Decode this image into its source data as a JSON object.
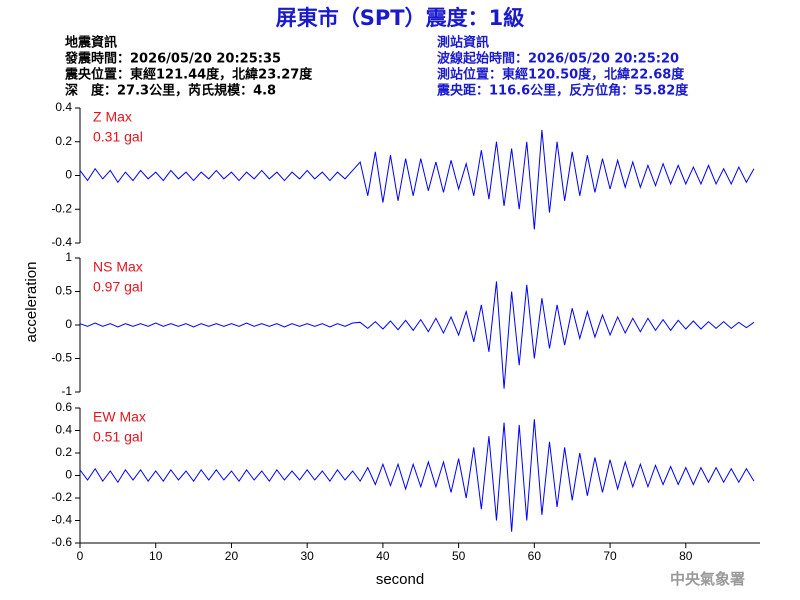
{
  "header": {
    "title": "屏東市（SPT）震度：1級",
    "left": [
      "地震資訊",
      "發震時間：2026/05/20 20:25:35",
      "震央位置：東經121.44度，北緯23.27度",
      "深　度：27.3公里，芮氏規模：4.8"
    ],
    "right": [
      "測站資訊",
      "波線起始時間：2026/05/20 20:25:20",
      "測站位置：東經120.50度，北緯22.68度",
      "震央距：116.6公里，反方位角：55.82度"
    ],
    "footer": "中央氣象署"
  },
  "chart_data": {
    "type": "line",
    "xlabel": "second",
    "ylabel": "acceleration",
    "xlim": [
      0,
      89.8
    ],
    "xticks": [
      0,
      10,
      20,
      30,
      40,
      50,
      60,
      70,
      80
    ],
    "x": [
      0,
      1,
      2,
      3,
      4,
      5,
      6,
      7,
      8,
      9,
      10,
      11,
      12,
      13,
      14,
      15,
      16,
      17,
      18,
      19,
      20,
      21,
      22,
      23,
      24,
      25,
      26,
      27,
      28,
      29,
      30,
      31,
      32,
      33,
      34,
      35,
      36,
      37,
      38,
      39,
      40,
      41,
      42,
      43,
      44,
      45,
      46,
      47,
      48,
      49,
      50,
      51,
      52,
      53,
      54,
      55,
      56,
      57,
      58,
      59,
      60,
      61,
      62,
      63,
      64,
      65,
      66,
      67,
      68,
      69,
      70,
      71,
      72,
      73,
      74,
      75,
      76,
      77,
      78,
      79,
      80,
      81,
      82,
      83,
      84,
      85,
      86,
      87,
      88,
      89
    ],
    "series": [
      {
        "name": "Z Max",
        "max_label": "0.31 gal",
        "color": "#0000ff",
        "ylim": [
          -0.4,
          0.4
        ],
        "yticks": [
          0.4,
          0.2,
          0,
          -0.2,
          -0.4
        ],
        "values": [
          0.03,
          -0.03,
          0.04,
          -0.02,
          0.03,
          -0.04,
          0.02,
          -0.03,
          0.03,
          -0.02,
          0.02,
          -0.03,
          0.03,
          -0.02,
          0.02,
          -0.03,
          0.02,
          -0.02,
          0.03,
          -0.02,
          0.02,
          -0.03,
          0.02,
          -0.02,
          0.03,
          -0.02,
          0.02,
          -0.03,
          0.02,
          -0.02,
          0.03,
          -0.02,
          0.02,
          -0.03,
          0.02,
          -0.02,
          0.03,
          0.08,
          -0.12,
          0.14,
          -0.16,
          0.12,
          -0.15,
          0.1,
          -0.12,
          0.1,
          -0.09,
          0.08,
          -0.1,
          0.09,
          -0.08,
          0.07,
          -0.12,
          0.15,
          -0.14,
          0.2,
          -0.18,
          0.16,
          -0.2,
          0.2,
          -0.32,
          0.27,
          -0.22,
          0.2,
          -0.15,
          0.14,
          -0.12,
          0.12,
          -0.1,
          0.1,
          -0.08,
          0.09,
          -0.07,
          0.08,
          -0.07,
          0.06,
          -0.06,
          0.07,
          -0.05,
          0.06,
          -0.05,
          0.05,
          -0.05,
          0.06,
          -0.05,
          0.04,
          -0.05,
          0.05,
          -0.04,
          0.04
        ]
      },
      {
        "name": "NS Max",
        "max_label": "0.97 gal",
        "color": "#0000ff",
        "ylim": [
          -1,
          1
        ],
        "yticks": [
          1,
          0.5,
          0,
          -0.5,
          -1
        ],
        "values": [
          0.02,
          -0.02,
          0.03,
          -0.02,
          0.02,
          -0.03,
          0.02,
          -0.02,
          0.02,
          -0.02,
          0.03,
          -0.02,
          0.02,
          -0.02,
          0.02,
          -0.03,
          0.02,
          -0.02,
          0.02,
          -0.02,
          0.02,
          -0.02,
          0.03,
          -0.02,
          0.02,
          -0.02,
          0.02,
          -0.03,
          0.02,
          -0.02,
          0.02,
          -0.02,
          0.02,
          -0.03,
          0.02,
          -0.02,
          0.03,
          0.04,
          -0.05,
          0.05,
          -0.06,
          0.06,
          -0.07,
          0.07,
          -0.08,
          0.08,
          -0.1,
          0.1,
          -0.12,
          0.12,
          -0.15,
          0.2,
          -0.25,
          0.3,
          -0.4,
          0.65,
          -0.95,
          0.5,
          -0.6,
          0.6,
          -0.5,
          0.4,
          -0.35,
          0.3,
          -0.3,
          0.25,
          -0.2,
          0.2,
          -0.18,
          0.15,
          -0.15,
          0.12,
          -0.12,
          0.1,
          -0.1,
          0.1,
          -0.08,
          0.08,
          -0.08,
          0.07,
          -0.06,
          0.06,
          -0.06,
          0.05,
          -0.05,
          0.05,
          -0.05,
          0.04,
          -0.04,
          0.04
        ]
      },
      {
        "name": "EW Max",
        "max_label": "0.51 gal",
        "color": "#0000ff",
        "ylim": [
          -0.6,
          0.6
        ],
        "yticks": [
          0.6,
          0.4,
          0.2,
          0,
          -0.2,
          -0.4,
          -0.6
        ],
        "values": [
          0.05,
          -0.04,
          0.06,
          -0.05,
          0.04,
          -0.06,
          0.05,
          -0.04,
          0.05,
          -0.05,
          0.04,
          -0.05,
          0.05,
          -0.04,
          0.04,
          -0.05,
          0.05,
          -0.04,
          0.05,
          -0.04,
          0.04,
          -0.05,
          0.05,
          -0.04,
          0.04,
          -0.05,
          0.05,
          -0.04,
          0.04,
          -0.04,
          0.05,
          -0.04,
          0.04,
          -0.05,
          0.05,
          -0.04,
          0.04,
          -0.05,
          0.07,
          -0.08,
          0.1,
          -0.09,
          0.1,
          -0.12,
          0.1,
          -0.1,
          0.12,
          -0.1,
          0.12,
          -0.15,
          0.15,
          -0.2,
          0.25,
          -0.3,
          0.35,
          -0.4,
          0.47,
          -0.5,
          0.45,
          -0.4,
          0.5,
          -0.35,
          0.3,
          -0.28,
          0.25,
          -0.22,
          0.2,
          -0.18,
          0.16,
          -0.15,
          0.14,
          -0.12,
          0.12,
          -0.1,
          0.1,
          -0.1,
          0.09,
          -0.08,
          0.08,
          -0.08,
          0.07,
          -0.08,
          0.07,
          -0.06,
          0.07,
          -0.06,
          0.06,
          -0.06,
          0.06,
          -0.05
        ]
      }
    ]
  }
}
